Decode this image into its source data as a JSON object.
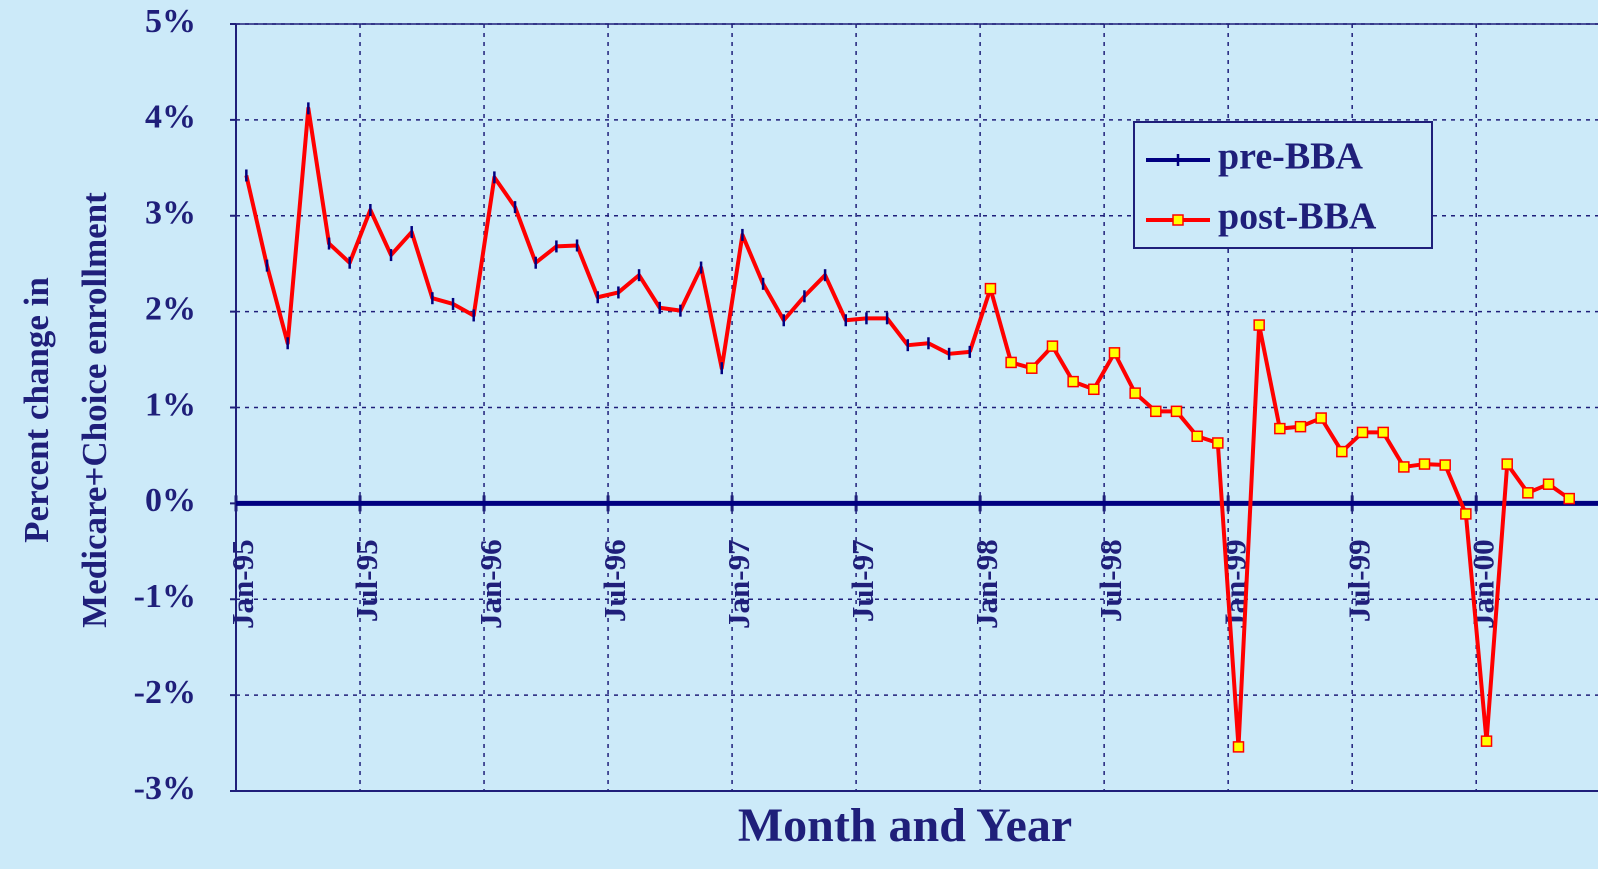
{
  "chart_data": {
    "type": "line",
    "x_label": "Month and Year",
    "y_label": [
      "Percent change in",
      "Medicare+Choice enrollment"
    ],
    "categories": [
      "Jan-95",
      null,
      null,
      null,
      null,
      null,
      "Jul-95",
      null,
      null,
      null,
      null,
      null,
      "Jan-96",
      null,
      null,
      null,
      null,
      null,
      "Jul-96",
      null,
      null,
      null,
      null,
      null,
      "Jan-97",
      null,
      null,
      null,
      null,
      null,
      "Jul-97",
      null,
      null,
      null,
      null,
      null,
      "Jan-98",
      null,
      null,
      null,
      null,
      null,
      "Jul-98",
      null,
      null,
      null,
      null,
      null,
      "Jan-99",
      null,
      null,
      null,
      null,
      null,
      "Jul-99",
      null,
      null,
      null,
      null,
      null,
      "Jan-00",
      null,
      null,
      null,
      null
    ],
    "line_color": "#ff0000",
    "series": [
      {
        "name": "pre-BBA",
        "color": "#000080",
        "values": [
          3.42,
          2.48,
          1.67,
          4.12,
          2.71,
          2.51,
          3.06,
          2.59,
          2.83,
          2.14,
          2.08,
          1.96,
          3.4,
          3.09,
          2.51,
          2.68,
          2.69,
          2.15,
          2.2,
          2.38,
          2.04,
          2.01,
          2.46,
          1.41,
          2.8,
          2.29,
          1.91,
          2.16,
          2.38,
          1.91,
          1.93,
          1.93,
          1.65,
          1.67,
          1.56,
          1.58,
          null,
          null,
          null,
          null,
          null,
          null,
          null,
          null,
          null,
          null,
          null,
          null,
          null,
          null,
          null,
          null,
          null,
          null,
          null,
          null,
          null,
          null,
          null,
          null,
          null,
          null,
          null,
          null,
          null
        ]
      },
      {
        "name": "post-BBA",
        "color": "#ffff00",
        "values": [
          null,
          null,
          null,
          null,
          null,
          null,
          null,
          null,
          null,
          null,
          null,
          null,
          null,
          null,
          null,
          null,
          null,
          null,
          null,
          null,
          null,
          null,
          null,
          null,
          null,
          null,
          null,
          null,
          null,
          null,
          null,
          null,
          null,
          null,
          null,
          null,
          2.24,
          1.47,
          1.41,
          1.64,
          1.27,
          1.19,
          1.57,
          1.15,
          0.96,
          0.96,
          0.7,
          0.63,
          -2.54,
          1.86,
          0.78,
          0.8,
          0.89,
          0.54,
          0.74,
          0.74,
          0.38,
          0.41,
          0.4,
          -0.11,
          -2.48,
          0.41,
          0.11,
          0.2,
          0.05
        ]
      }
    ],
    "ylim": [
      -3,
      5
    ],
    "yticks": [
      {
        "value": -3,
        "label": "-3%"
      },
      {
        "value": -2,
        "label": "-2%"
      },
      {
        "value": -1,
        "label": "-1%"
      },
      {
        "value": 0,
        "label": "0%"
      },
      {
        "value": 1,
        "label": "1%"
      },
      {
        "value": 2,
        "label": "2%"
      },
      {
        "value": 3,
        "label": "3%"
      },
      {
        "value": 4,
        "label": "4%"
      },
      {
        "value": 5,
        "label": "5%"
      }
    ],
    "grid": true,
    "legend": "upper right"
  }
}
